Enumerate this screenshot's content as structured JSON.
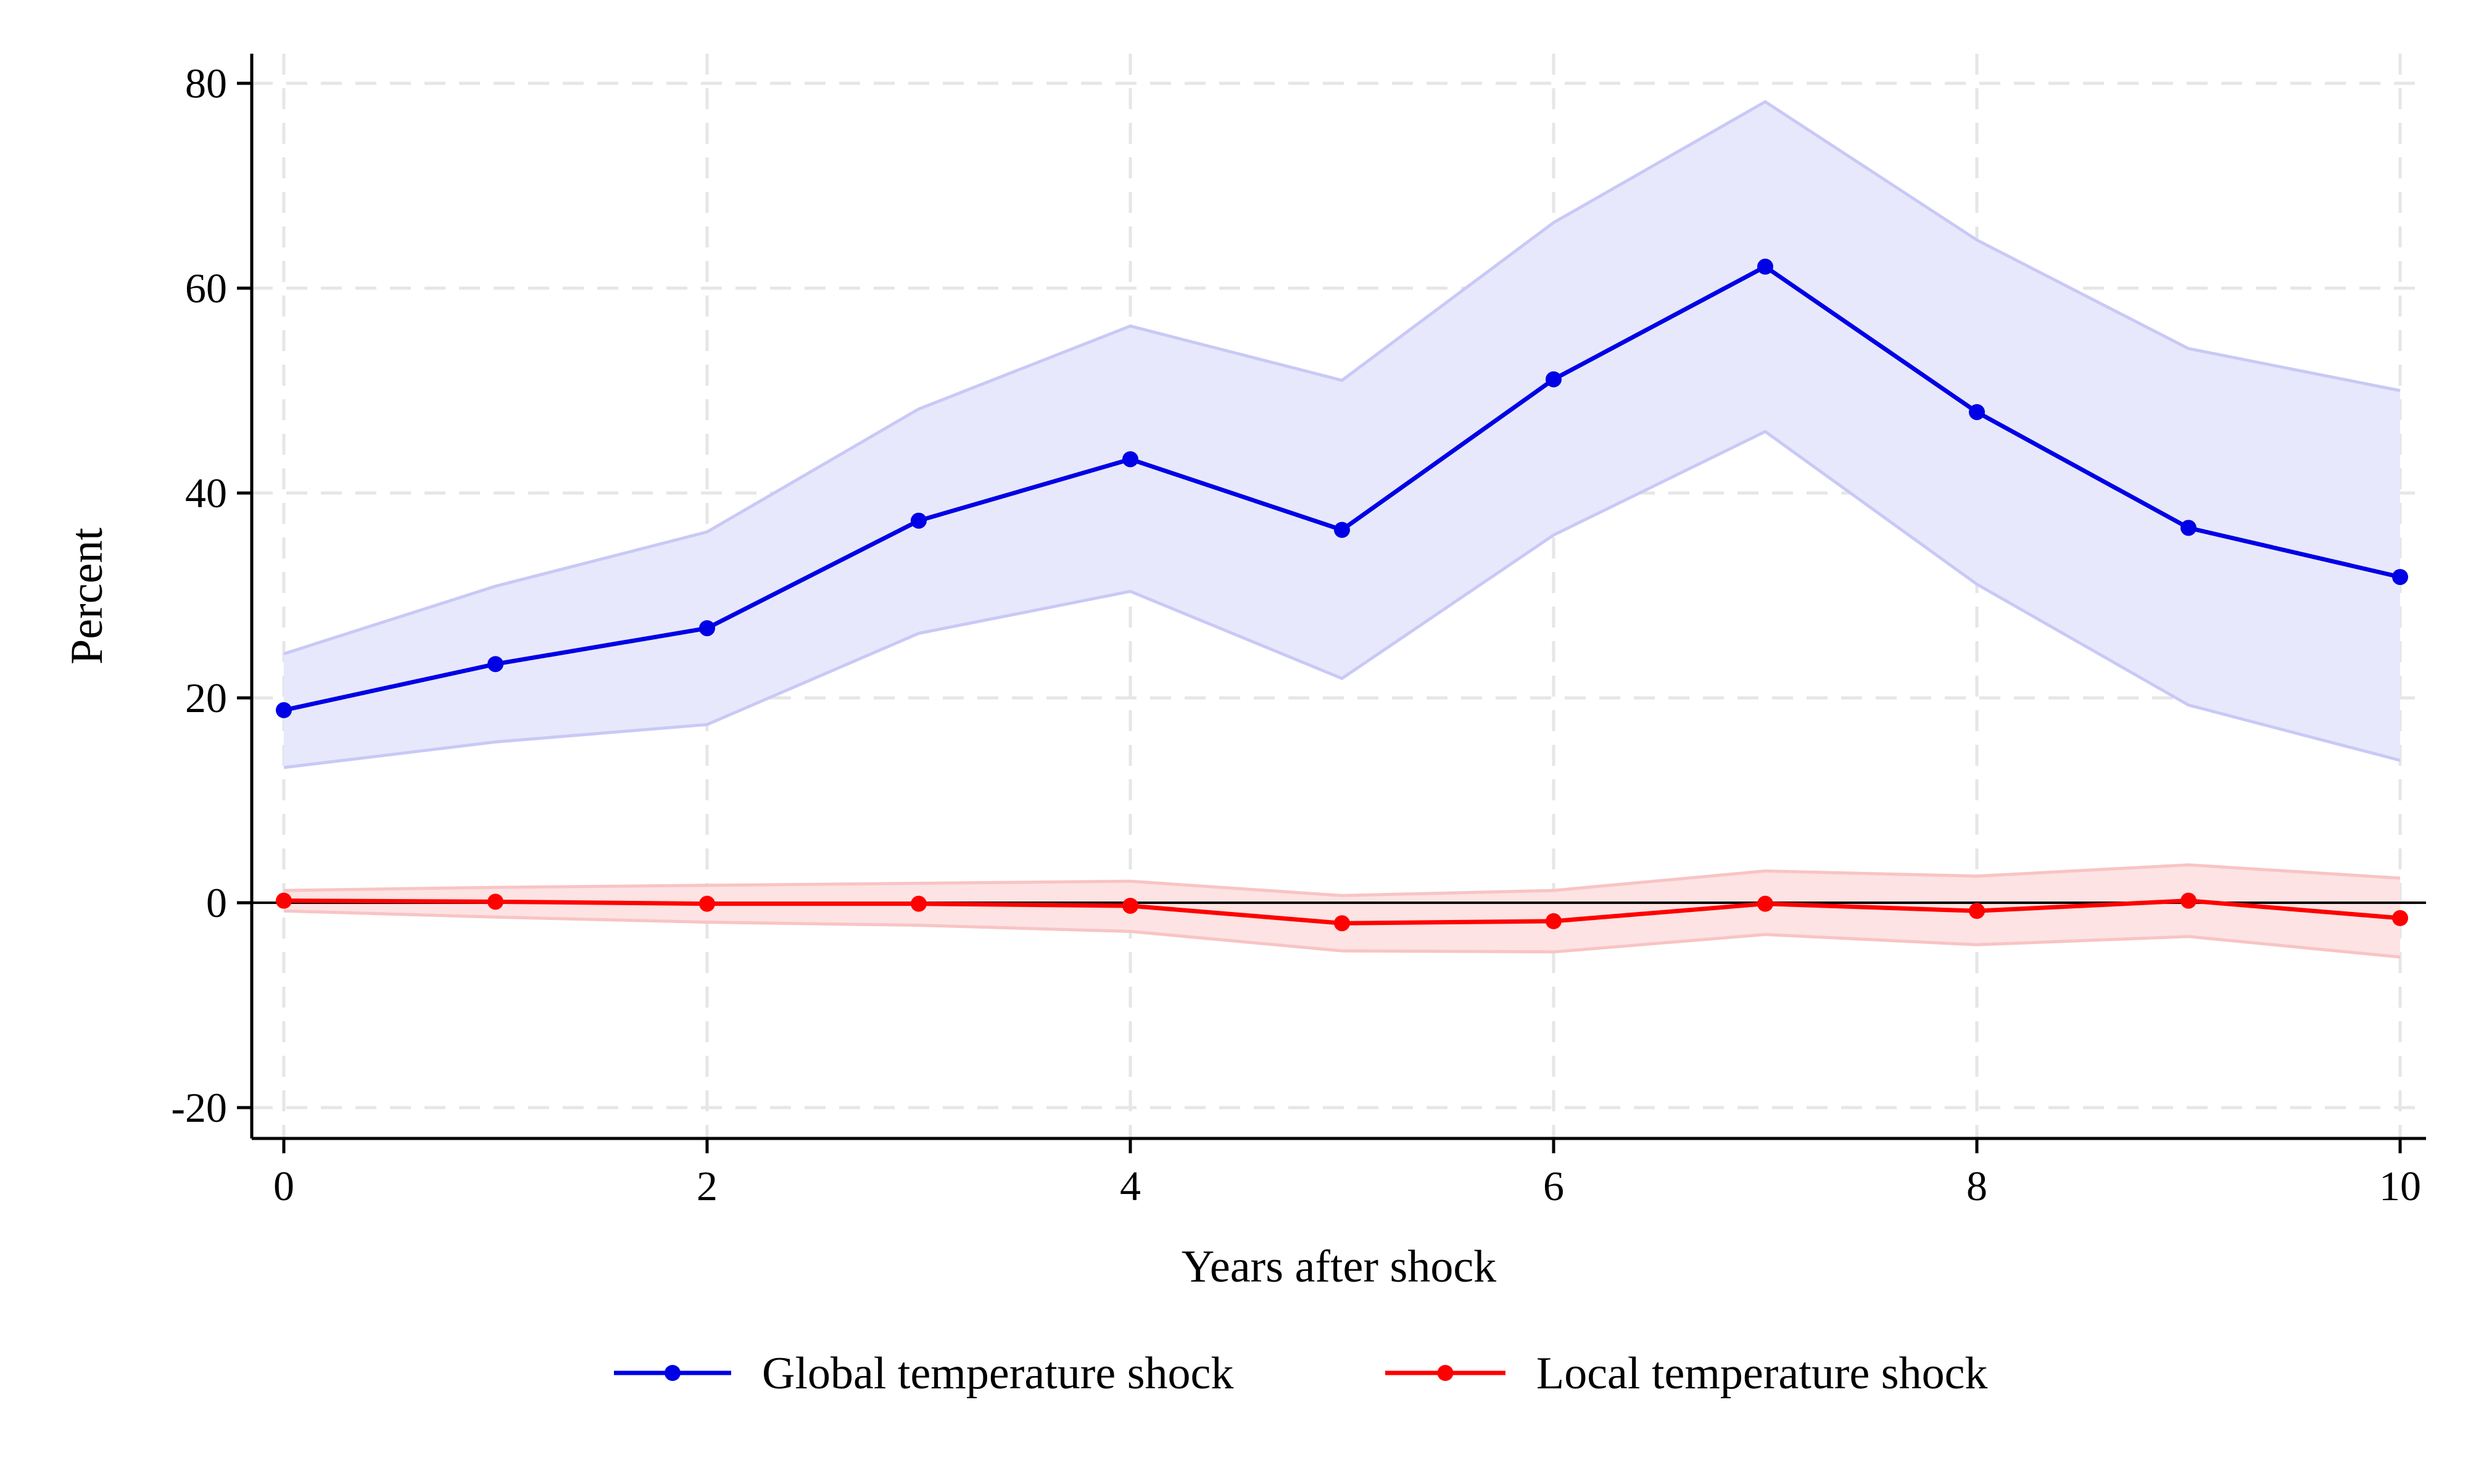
{
  "chart_data": {
    "type": "line",
    "title": "",
    "xlabel": "Years after shock",
    "ylabel": "Percent",
    "xlim": [
      0,
      10
    ],
    "ylim": [
      -20,
      80
    ],
    "x_ticks": [
      0,
      2,
      4,
      6,
      8,
      10
    ],
    "y_ticks": [
      -20,
      0,
      20,
      40,
      60,
      80
    ],
    "x_tick_labels": [
      "0",
      "2",
      "4",
      "6",
      "8",
      "10"
    ],
    "y_tick_labels": [
      "-20",
      "0",
      "20",
      "40",
      "60",
      "80"
    ],
    "grid": true,
    "zero_line": true,
    "legend": "bottom",
    "x": [
      0,
      1,
      2,
      3,
      4,
      5,
      6,
      7,
      8,
      9,
      10
    ],
    "series": [
      {
        "name": "Global temperature shock",
        "color": "#0000e6",
        "band_color": "#e8e8fc",
        "values": [
          18.8,
          23.3,
          26.8,
          37.3,
          43.3,
          36.4,
          51.1,
          62.1,
          47.9,
          36.6,
          31.8
        ],
        "lower": [
          13.2,
          15.7,
          17.4,
          26.3,
          30.4,
          21.9,
          35.9,
          46.0,
          31.1,
          19.3,
          13.9
        ],
        "upper": [
          24.3,
          30.9,
          36.2,
          48.2,
          56.3,
          51.0,
          66.4,
          78.2,
          64.7,
          54.1,
          50.0
        ]
      },
      {
        "name": "Local temperature shock",
        "color": "#ff0000",
        "band_color": "#fde3e3",
        "values": [
          0.2,
          0.1,
          -0.1,
          -0.1,
          -0.3,
          -2.0,
          -1.8,
          -0.1,
          -0.8,
          0.2,
          -1.5
        ],
        "lower": [
          -0.8,
          -1.4,
          -1.9,
          -2.2,
          -2.8,
          -4.7,
          -4.8,
          -3.1,
          -4.1,
          -3.3,
          -5.3
        ],
        "upper": [
          1.2,
          1.5,
          1.7,
          1.9,
          2.1,
          0.7,
          1.2,
          3.1,
          2.6,
          3.7,
          2.4
        ]
      }
    ]
  }
}
